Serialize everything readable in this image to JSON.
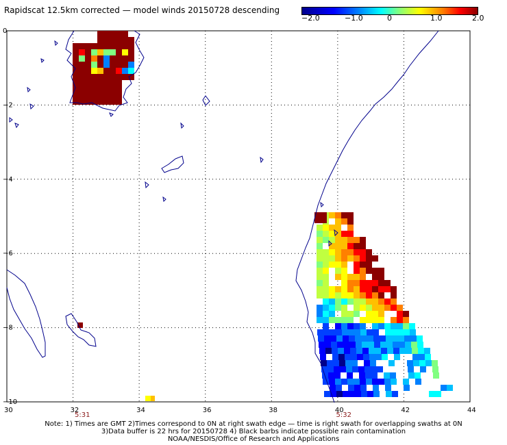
{
  "title": "Rapidscat 12.5km corrected — model winds 20150728 descending",
  "colorbar": {
    "min": -2.0,
    "max": 2.0,
    "tick_labels": [
      "−2.0",
      "−1.0",
      "0",
      "1.0",
      "2.0"
    ],
    "tick_values": [
      -2.0,
      -1.0,
      0,
      1.0,
      2.0
    ]
  },
  "map": {
    "lon_range": [
      30,
      44
    ],
    "lat_range": [
      -10,
      0
    ],
    "lon_ticks": [
      "30",
      "32",
      "34",
      "36",
      "38",
      "40",
      "42",
      "44"
    ],
    "lat_ticks": [
      "0",
      "−2",
      "−4",
      "−6",
      "−8",
      "−10"
    ],
    "times": [
      {
        "label": "5:31",
        "lon": 32.3
      },
      {
        "label": "5:32",
        "lon": 40.2
      }
    ],
    "coast_color": "#00008b",
    "grid": "dotted"
  },
  "notes": [
    "Note: 1) Times are GMT 2)Times correspond to 0N at right swath edge — time is right swath for overlapping swaths at 0N",
    "3)Data buffer is 22 hrs for 20150728 4) Black barbs indicate possible rain contamination",
    "NOAA/NESDIS/Office of Research and Applications"
  ]
}
